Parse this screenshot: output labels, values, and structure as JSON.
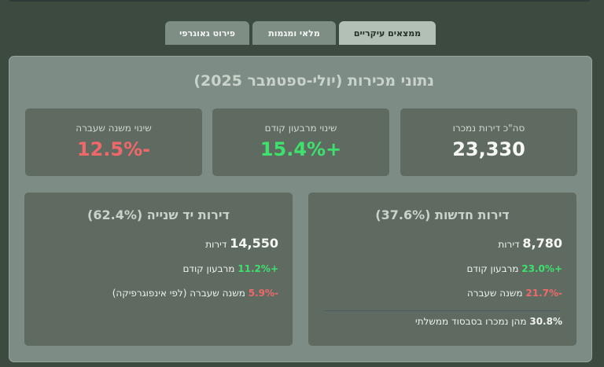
{
  "tabs": [
    {
      "label": "ממצאים עיקריים",
      "active": true
    },
    {
      "label": "מלאי ומגמות",
      "active": false
    },
    {
      "label": "פירוט גאוגרפי",
      "active": false
    }
  ],
  "panel": {
    "title": "נתוני מכירות (יולי-ספטמבר 2025)"
  },
  "stats": [
    {
      "label": "סה\"כ דירות נמכרו",
      "value": "23,330",
      "color": "#f7f8f6"
    },
    {
      "label": "שינוי מרבעון קודם",
      "value": "+15.4%",
      "color": "#3ee06e"
    },
    {
      "label": "שינוי משנה שעברה",
      "value": "-12.5%",
      "color": "#f0686a"
    }
  ],
  "new_apartments": {
    "title": "דירות חדשות (37.6%)",
    "count": "8,780",
    "count_unit": "דירות",
    "qoq_change": "+23.0%",
    "qoq_label": "מרבעון קודם",
    "yoy_change": "-21.7%",
    "yoy_label": "משנה שעברה",
    "subsidized_pct": "30.8%",
    "subsidized_label": "מהן נמכרו בסבסוד ממשלתי"
  },
  "used_apartments": {
    "title": "דירות יד שנייה (62.4%)",
    "count": "14,550",
    "count_unit": "דירות",
    "qoq_change": "+11.2%",
    "qoq_label": "מרבעון קודם",
    "yoy_change": "-5.9%",
    "yoy_label": "משנה שעברה (לפי אינפוגרפיקה)"
  },
  "colors": {
    "background": "#3c4a40",
    "panel": "#7d8c84",
    "card": "#5f6b60",
    "positive": "#3ee06e",
    "negative": "#f0686a",
    "active_tab": "#b3c0b6",
    "inactive_tab": "#7e8e85"
  }
}
